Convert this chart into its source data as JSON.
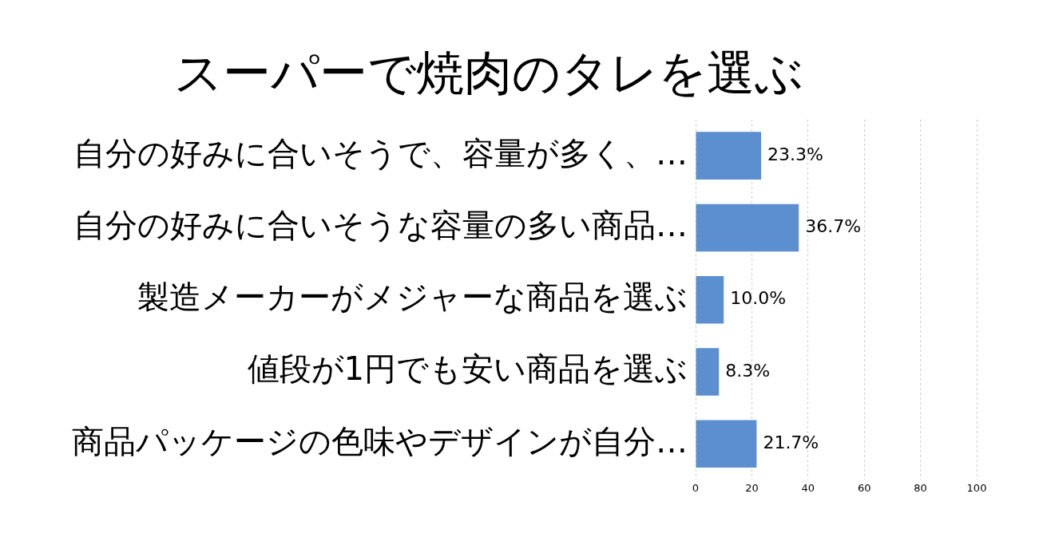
{
  "chart_data": {
    "type": "bar",
    "orientation": "horizontal",
    "title": "スーパーで焼肉のタレを選ぶ",
    "categories": [
      "自分の好みに合いそうで、容量が多く、…",
      "自分の好みに合いそうな容量の多い商品…",
      "製造メーカーがメジャーな商品を選ぶ",
      "値段が1円でも安い商品を選ぶ",
      "商品パッケージの色味やデザインが自分…"
    ],
    "values": [
      23.3,
      36.7,
      10.0,
      8.3,
      21.7
    ],
    "value_labels": [
      "23.3%",
      "36.7%",
      "10.0%",
      "8.3%",
      "21.7%"
    ],
    "color": "#5b8fd0",
    "xlim": [
      0,
      100
    ],
    "xticks": [
      0,
      20,
      40,
      60,
      80,
      100
    ],
    "grid": "x",
    "legend": false
  }
}
